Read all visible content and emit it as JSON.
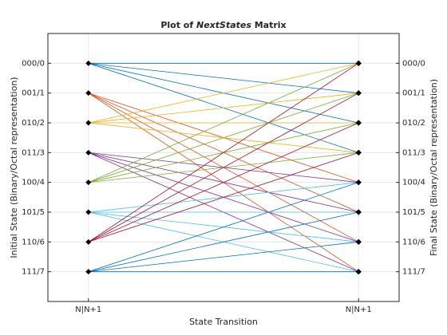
{
  "chart_data": {
    "type": "trellis",
    "title_parts": [
      "Plot of",
      "NextStates",
      "Matrix"
    ],
    "xlabel": "State Transition",
    "ylabel": "Initial State (Binary/Octal representation)",
    "y2label": "Final State (Binary/Octal representation)",
    "xlim": [
      0.85,
      2.15
    ],
    "xticks": [
      {
        "value": 1,
        "label": "N|N+1"
      },
      {
        "value": 2,
        "label": "N|N+1"
      }
    ],
    "ylim": [
      -1,
      8
    ],
    "yticks": [
      {
        "value": 0,
        "label": "000/0"
      },
      {
        "value": 1,
        "label": "001/1"
      },
      {
        "value": 2,
        "label": "010/2"
      },
      {
        "value": 3,
        "label": "011/3"
      },
      {
        "value": 4,
        "label": "100/4"
      },
      {
        "value": 5,
        "label": "101/5"
      },
      {
        "value": 6,
        "label": "110/6"
      },
      {
        "value": 7,
        "label": "111/7"
      }
    ],
    "grid": true,
    "marker_color": "#000000",
    "series": [
      {
        "state": 0,
        "color": "#0072BD",
        "next": [
          0,
          1,
          2,
          3
        ]
      },
      {
        "state": 1,
        "color": "#D95319",
        "next": [
          4,
          5,
          6,
          7
        ]
      },
      {
        "state": 2,
        "color": "#EDB120",
        "next": [
          0,
          1,
          2,
          3
        ]
      },
      {
        "state": 3,
        "color": "#7E2F8E",
        "next": [
          4,
          5,
          6,
          7
        ]
      },
      {
        "state": 4,
        "color": "#77AC30",
        "next": [
          0,
          1,
          2,
          3
        ]
      },
      {
        "state": 5,
        "color": "#4DBEEE",
        "next": [
          4,
          5,
          6,
          7
        ]
      },
      {
        "state": 6,
        "color": "#A2142F",
        "next": [
          0,
          1,
          2,
          3
        ]
      },
      {
        "state": 7,
        "color": "#0072BD",
        "next": [
          4,
          5,
          6,
          7
        ]
      }
    ]
  }
}
